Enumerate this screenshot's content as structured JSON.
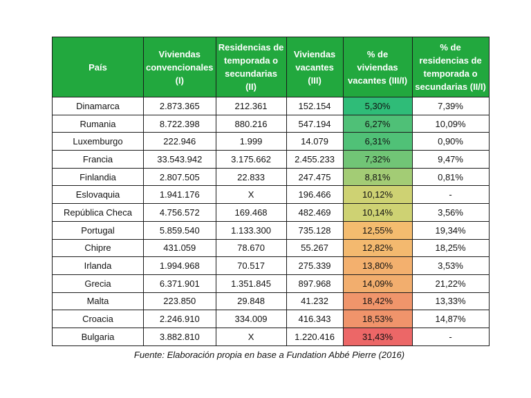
{
  "header_color": "#22a83e",
  "scale_colors": [
    "#2fbc78",
    "#f6d772",
    "#ec6767"
  ],
  "chart_data": {
    "type": "table",
    "columns": [
      "País",
      "Viviendas convencionales (I)",
      "Residencias de temporada o secundarias (II)",
      "Viviendas vacantes (III)",
      "% de viviendas vacantes (III/I)",
      "% de residencias de temporada o secundarias (II/I)"
    ],
    "rows": [
      [
        "Dinamarca",
        "2.873.365",
        "212.361",
        "152.154",
        "5,30%",
        "7,39%"
      ],
      [
        "Rumania",
        "8.722.398",
        "880.216",
        "547.194",
        "6,27%",
        "10,09%"
      ],
      [
        "Luxemburgo",
        "222.946",
        "1.999",
        "14.079",
        "6,31%",
        "0,90%"
      ],
      [
        "Francia",
        "33.543.942",
        "3.175.662",
        "2.455.233",
        "7,32%",
        "9,47%"
      ],
      [
        "Finlandia",
        "2.807.505",
        "22.833",
        "247.475",
        "8,81%",
        "0,81%"
      ],
      [
        "Eslovaquia",
        "1.941.176",
        "X",
        "196.466",
        "10,12%",
        "-"
      ],
      [
        "República Checa",
        "4.756.572",
        "169.468",
        "482.469",
        "10,14%",
        "3,56%"
      ],
      [
        "Portugal",
        "5.859.540",
        "1.133.300",
        "735.128",
        "12,55%",
        "19,34%"
      ],
      [
        "Chipre",
        "431.059",
        "78.670",
        "55.267",
        "12,82%",
        "18,25%"
      ],
      [
        "Irlanda",
        "1.994.968",
        "70.517",
        "275.339",
        "13,80%",
        "3,53%"
      ],
      [
        "Grecia",
        "6.371.901",
        "1.351.845",
        "897.968",
        "14,09%",
        "21,22%"
      ],
      [
        "Malta",
        "223.850",
        "29.848",
        "41.232",
        "18,42%",
        "13,33%"
      ],
      [
        "Croacia",
        "2.246.910",
        "334.009",
        "416.343",
        "18,53%",
        "14,87%"
      ],
      [
        "Bulgaria",
        "3.882.810",
        "X",
        "1.220.416",
        "31,43%",
        "-"
      ]
    ],
    "vacancy_rate_values": [
      5.3,
      6.27,
      6.31,
      7.32,
      8.81,
      10.12,
      10.14,
      12.55,
      12.82,
      13.8,
      14.09,
      18.42,
      18.53,
      31.43
    ]
  },
  "source": "Fuente: Elaboración propia en base a Fundation Abbé Pierre (2016)"
}
